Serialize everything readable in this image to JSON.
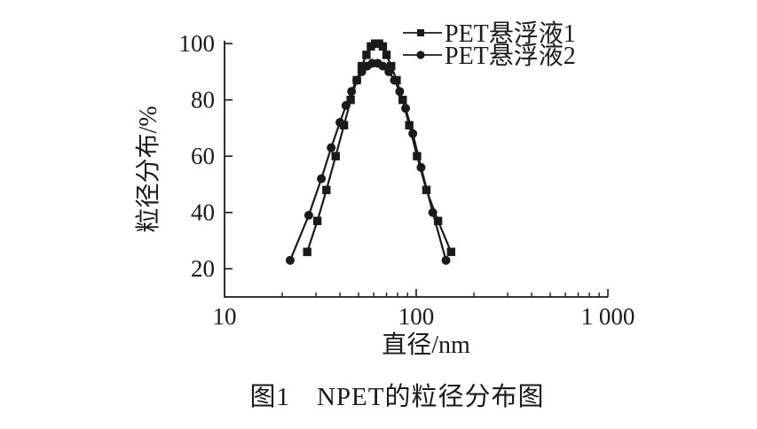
{
  "chart_data": {
    "type": "line",
    "title": "",
    "caption": "图1　NPET的粒径分布图",
    "xlabel": "直径/nm",
    "ylabel": "粒径分布/%",
    "x_scale": "log",
    "xlim": [
      10,
      1000
    ],
    "ylim": [
      10,
      101
    ],
    "grid": false,
    "legend_position": "top-right",
    "line_color": "#1a1a1a",
    "x_major_ticks": [
      {
        "value": 10,
        "label": "10"
      },
      {
        "value": 100,
        "label": "100"
      },
      {
        "value": 1000,
        "label": "1 000"
      }
    ],
    "x_minor_ticks": [
      20,
      30,
      40,
      50,
      60,
      70,
      80,
      90,
      200,
      300,
      400,
      500,
      600,
      700,
      800,
      900
    ],
    "y_ticks": [
      {
        "value": 20,
        "label": "20"
      },
      {
        "value": 40,
        "label": "40"
      },
      {
        "value": 60,
        "label": "60"
      },
      {
        "value": 80,
        "label": "80"
      },
      {
        "value": 100,
        "label": "100"
      }
    ],
    "series": [
      {
        "name": "PET悬浮液1",
        "marker": "square",
        "x": [
          27,
          30.5,
          34,
          38,
          42,
          45.5,
          49,
          52,
          55,
          58,
          61,
          64,
          67,
          70,
          74,
          79,
          85,
          92,
          101,
          113,
          130,
          152
        ],
        "y": [
          26,
          37,
          48,
          60,
          71,
          80,
          87,
          92,
          96,
          99,
          100,
          100,
          99,
          96,
          92,
          87,
          80,
          71,
          60,
          48,
          37,
          26
        ]
      },
      {
        "name": "PET悬浮液2",
        "marker": "circle",
        "x": [
          22,
          27.5,
          32,
          36,
          40,
          43,
          46,
          49,
          52,
          55.5,
          59,
          63,
          67,
          72,
          77,
          82,
          88,
          96,
          106,
          122,
          143
        ],
        "y": [
          23,
          39,
          52,
          63,
          72,
          78,
          83,
          87,
          90,
          92,
          93,
          93,
          92,
          90,
          87,
          83,
          77,
          68,
          56,
          40,
          23
        ]
      }
    ]
  }
}
